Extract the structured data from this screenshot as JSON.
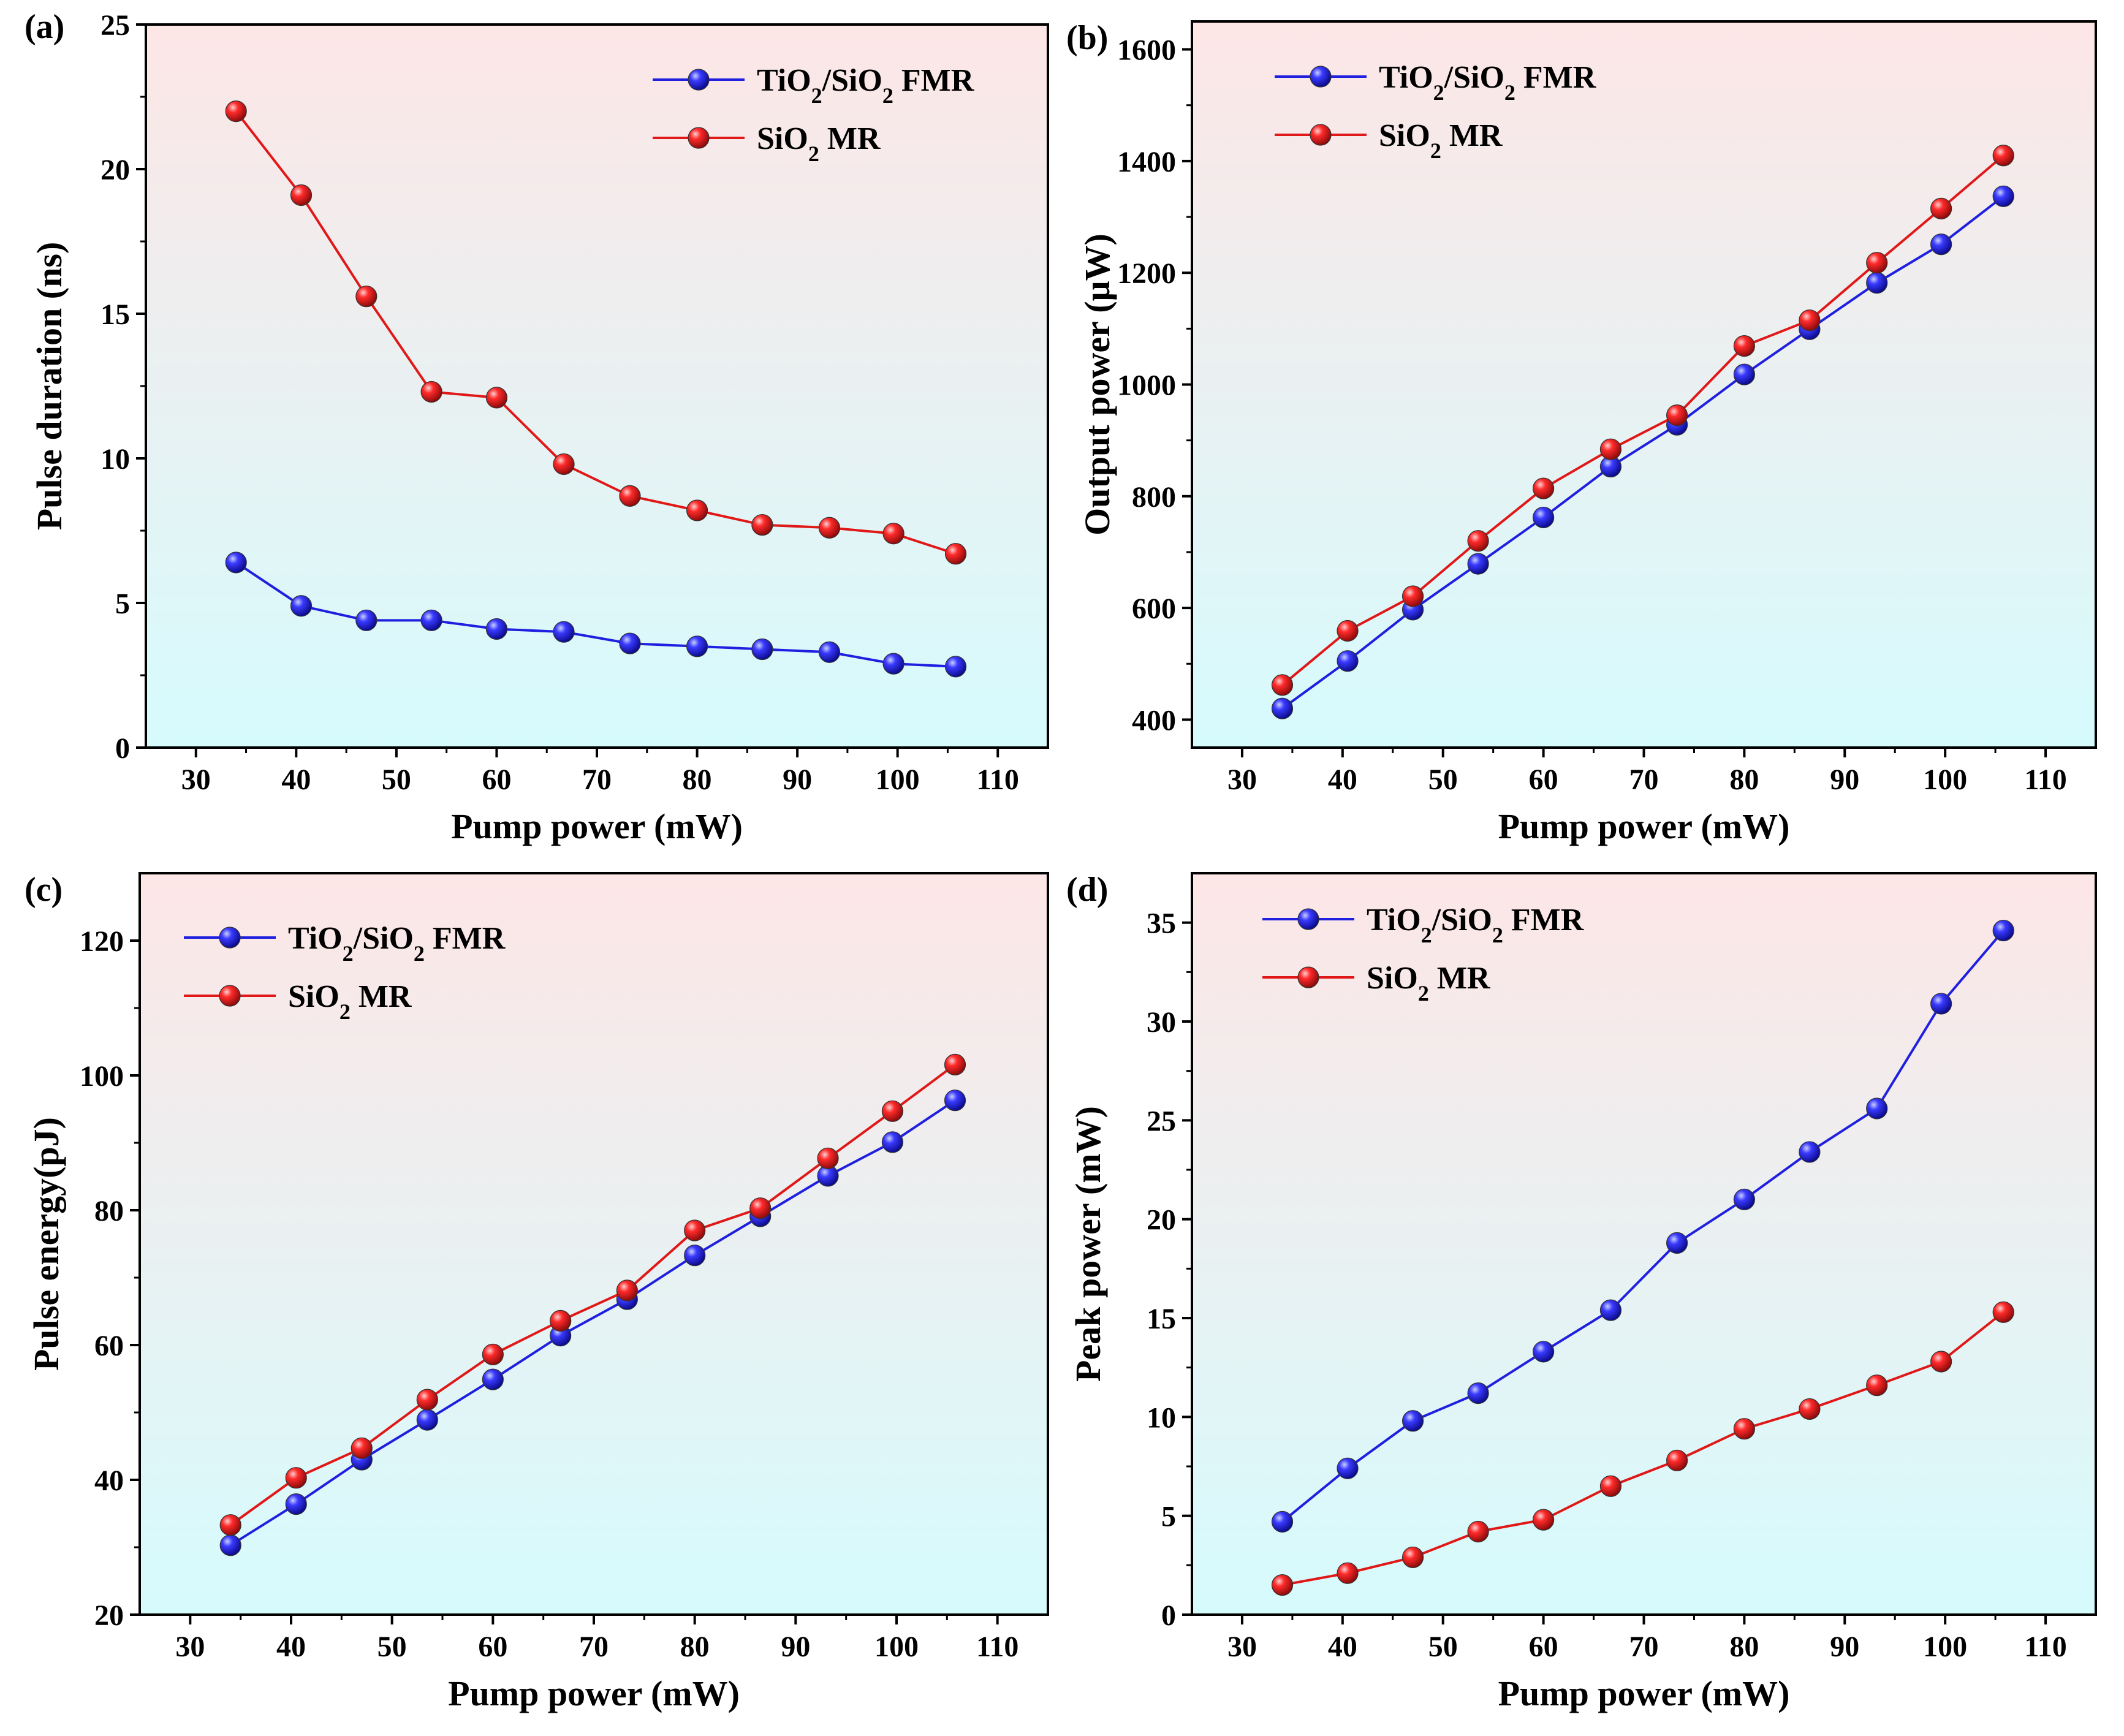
{
  "figure": {
    "colors": {
      "series_blue": "#1f1fe0",
      "series_red": "#e01818",
      "bg_top": "#fde6e6",
      "bg_bottom": "#d6fbfd",
      "axis": "#000000"
    }
  },
  "chart_data": [
    {
      "id": "a",
      "type": "line",
      "panel_label": "(a)",
      "title": "",
      "xlabel": "Pump power (mW)",
      "ylabel": "Pulse duration (ns)",
      "xlim": [
        25,
        115
      ],
      "ylim": [
        0,
        25
      ],
      "xticks": [
        30,
        40,
        50,
        60,
        70,
        80,
        90,
        100,
        110
      ],
      "yticks": [
        0,
        5,
        10,
        15,
        20,
        25
      ],
      "x": [
        34,
        40.5,
        47,
        53.5,
        60,
        66.7,
        73.3,
        80,
        86.5,
        93.2,
        99.6,
        105.8
      ],
      "legend_position": "top-right",
      "series": [
        {
          "name": "TiO2/SiO2 FMR",
          "base": "TiO",
          "sub1": "2",
          "mid": "/SiO",
          "sub2": "2",
          "tail": " FMR",
          "color": "#1f1fe0",
          "values": [
            6.4,
            4.9,
            4.4,
            4.4,
            4.1,
            4.0,
            3.6,
            3.5,
            3.4,
            3.3,
            2.9,
            2.8
          ]
        },
        {
          "name": "SiO2 MR",
          "base": "SiO",
          "sub1": "2",
          "mid": "",
          "sub2": "",
          "tail": " MR",
          "color": "#e01818",
          "values": [
            22.0,
            19.1,
            15.6,
            12.3,
            12.1,
            9.8,
            8.7,
            8.2,
            7.7,
            7.6,
            7.4,
            6.7
          ]
        }
      ]
    },
    {
      "id": "b",
      "type": "line",
      "panel_label": "(b)",
      "title": "",
      "xlabel": "Pump power (mW)",
      "ylabel": "Output power (μW)",
      "xlim": [
        25,
        115
      ],
      "ylim": [
        350,
        1650
      ],
      "xticks": [
        30,
        40,
        50,
        60,
        70,
        80,
        90,
        100,
        110
      ],
      "yticks": [
        400,
        600,
        800,
        1000,
        1200,
        1400,
        1600
      ],
      "x": [
        34,
        40.5,
        47,
        53.5,
        60,
        66.7,
        73.3,
        80,
        86.5,
        93.2,
        99.6,
        105.8
      ],
      "legend_position": "top-left",
      "series": [
        {
          "name": "TiO2/SiO2 FMR",
          "base": "TiO",
          "sub1": "2",
          "mid": "/SiO",
          "sub2": "2",
          "tail": " FMR",
          "color": "#1f1fe0",
          "values": [
            420,
            505,
            597,
            679,
            762,
            853,
            928,
            1018,
            1099,
            1182,
            1251,
            1337
          ]
        },
        {
          "name": "SiO2 MR",
          "base": "SiO",
          "sub1": "2",
          "mid": "",
          "sub2": "",
          "tail": " MR",
          "color": "#e01818",
          "values": [
            462,
            559,
            621,
            720,
            814,
            884,
            945,
            1069,
            1115,
            1218,
            1315,
            1410
          ]
        }
      ]
    },
    {
      "id": "c",
      "type": "line",
      "panel_label": "(c)",
      "title": "",
      "xlabel": "Pump power (mW)",
      "ylabel": "Pulse energy(pJ)",
      "xlim": [
        25,
        115
      ],
      "ylim": [
        20,
        130
      ],
      "xticks": [
        30,
        40,
        50,
        60,
        70,
        80,
        90,
        100,
        110
      ],
      "yticks": [
        20,
        40,
        60,
        80,
        100,
        120
      ],
      "x": [
        34,
        40.5,
        47,
        53.5,
        60,
        66.7,
        73.3,
        80,
        86.5,
        93.2,
        99.6,
        105.8
      ],
      "legend_position": "top-left",
      "series": [
        {
          "name": "TiO2/SiO2 FMR",
          "base": "TiO",
          "sub1": "2",
          "mid": "/SiO",
          "sub2": "2",
          "tail": " FMR",
          "color": "#1f1fe0",
          "values": [
            30.3,
            36.4,
            43.0,
            48.9,
            54.9,
            61.4,
            66.8,
            73.3,
            79.1,
            85.1,
            90.1,
            96.3
          ]
        },
        {
          "name": "SiO2 MR",
          "base": "SiO",
          "sub1": "2",
          "mid": "",
          "sub2": "",
          "tail": " MR",
          "color": "#e01818",
          "values": [
            33.3,
            40.3,
            44.7,
            51.9,
            58.6,
            63.6,
            68.1,
            77.0,
            80.3,
            87.7,
            94.7,
            101.6
          ]
        }
      ]
    },
    {
      "id": "d",
      "type": "line",
      "panel_label": "(d)",
      "title": "",
      "xlabel": "Pump power (mW)",
      "ylabel": "Peak power (mW)",
      "xlim": [
        25,
        115
      ],
      "ylim": [
        0,
        37.5
      ],
      "xticks": [
        30,
        40,
        50,
        60,
        70,
        80,
        90,
        100,
        110
      ],
      "yticks": [
        0,
        5,
        10,
        15,
        20,
        25,
        30,
        35
      ],
      "x": [
        34,
        40.5,
        47,
        53.5,
        60,
        66.7,
        73.3,
        80,
        86.5,
        93.2,
        99.6,
        105.8
      ],
      "legend_position": "top-left",
      "series": [
        {
          "name": "TiO2/SiO2 FMR",
          "base": "TiO",
          "sub1": "2",
          "mid": "/SiO",
          "sub2": "2",
          "tail": " FMR",
          "color": "#1f1fe0",
          "values": [
            4.7,
            7.4,
            9.8,
            11.2,
            13.3,
            15.4,
            18.8,
            21.0,
            23.4,
            25.6,
            30.9,
            34.6
          ]
        },
        {
          "name": "SiO2 MR",
          "base": "SiO",
          "sub1": "2",
          "mid": "",
          "sub2": "",
          "tail": " MR",
          "color": "#e01818",
          "values": [
            1.5,
            2.1,
            2.9,
            4.2,
            4.8,
            6.5,
            7.8,
            9.4,
            10.4,
            11.6,
            12.8,
            15.3
          ]
        }
      ]
    }
  ]
}
